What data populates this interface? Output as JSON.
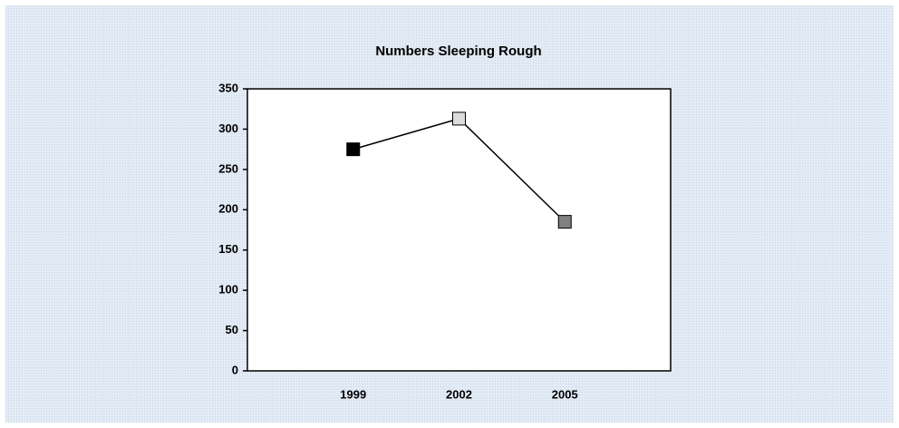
{
  "chart_data": {
    "type": "line",
    "title": "Numbers Sleeping Rough",
    "categories": [
      "1999",
      "2002",
      "2005"
    ],
    "values": [
      275,
      313,
      185
    ],
    "color": "#000000",
    "marker_colors": [
      "#000000",
      "#dcdcdc",
      "#808080"
    ],
    "ylim": [
      0,
      350
    ],
    "yticks": [
      0,
      50,
      100,
      150,
      200,
      250,
      300,
      350
    ],
    "grid": false
  }
}
